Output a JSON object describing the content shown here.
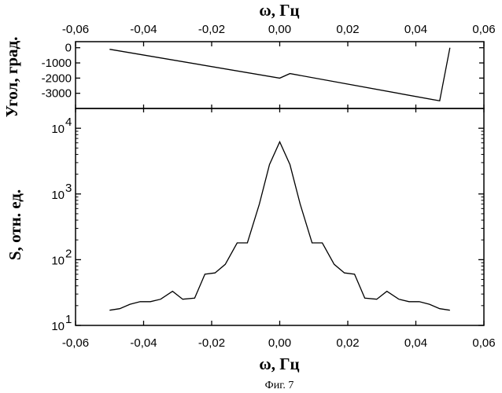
{
  "figure": {
    "caption": "Фиг. 7"
  },
  "chart_data": [
    {
      "type": "line",
      "xlabel": "ω, Гц",
      "ylabel": "Угол, град.",
      "xlim": [
        -0.06,
        0.06
      ],
      "ylim": [
        -4000,
        400
      ],
      "x_ticks": [
        "-0,06",
        "-0,04",
        "-0,02",
        "0,00",
        "0,02",
        "0,04",
        "0,06"
      ],
      "y_ticks": [
        {
          "v": 0,
          "label": "0"
        },
        {
          "v": -1000,
          "label": "-1000"
        },
        {
          "v": -2000,
          "label": "-2000"
        },
        {
          "v": -3000,
          "label": "-3000"
        }
      ],
      "x": [
        -0.05,
        0.0,
        0.003,
        0.047,
        0.05
      ],
      "y": [
        -100,
        -2000,
        -1700,
        -3500,
        0
      ]
    },
    {
      "type": "line",
      "xlabel": "ω, Гц",
      "ylabel": "S, отн. ед.",
      "yscale": "log",
      "xlim": [
        -0.06,
        0.06
      ],
      "ylim": [
        10,
        20000
      ],
      "x_ticks": [
        "-0,06",
        "-0,04",
        "-0,02",
        "0,00",
        "0,02",
        "0,04",
        "0,06"
      ],
      "y_ticks": [
        {
          "v": 10,
          "base": "10",
          "exp": "1"
        },
        {
          "v": 100,
          "base": "10",
          "exp": "2"
        },
        {
          "v": 1000,
          "base": "10",
          "exp": "3"
        },
        {
          "v": 10000,
          "base": "10",
          "exp": "4"
        }
      ],
      "x": [
        -0.05,
        -0.047,
        -0.044,
        -0.041,
        -0.038,
        -0.035,
        -0.0315,
        -0.0285,
        -0.025,
        -0.022,
        -0.019,
        -0.016,
        -0.0125,
        -0.0095,
        -0.006,
        -0.003,
        0.0,
        0.003,
        0.006,
        0.0095,
        0.0125,
        0.016,
        0.019,
        0.022,
        0.025,
        0.0285,
        0.0315,
        0.035,
        0.038,
        0.041,
        0.044,
        0.047,
        0.05
      ],
      "y": [
        17,
        18,
        21,
        23,
        23,
        25,
        33,
        25,
        26,
        60,
        63,
        85,
        180,
        180,
        700,
        2800,
        6200,
        2800,
        700,
        180,
        180,
        85,
        63,
        60,
        26,
        25,
        33,
        25,
        23,
        23,
        21,
        18,
        17
      ]
    }
  ]
}
